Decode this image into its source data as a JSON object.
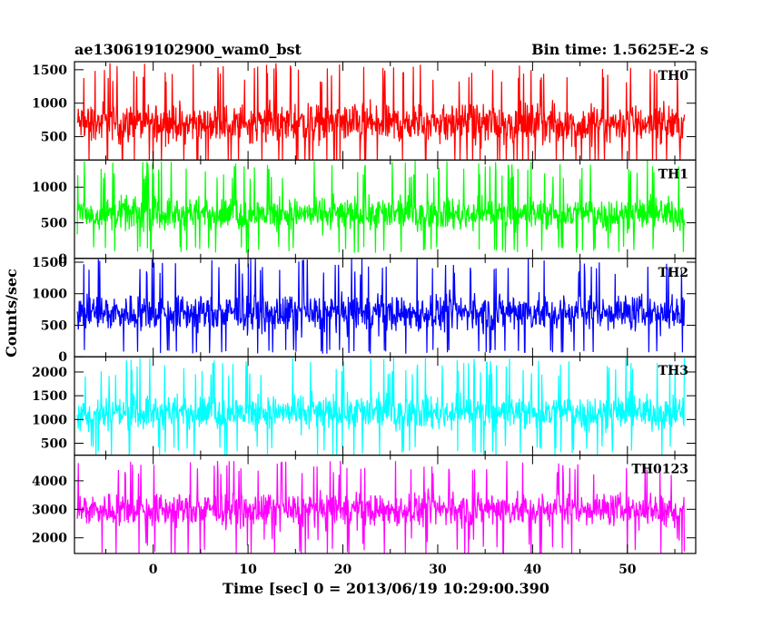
{
  "chart_data": {
    "type": "line",
    "title": "ae130619102900_wam0_bst",
    "subtitle": "Bin time: 1.5625E-2 s",
    "xlabel": "Time [sec] 0 = 2013/06/19 10:29:00.390",
    "ylabel": "Counts/sec",
    "xlim": [
      -8.3,
      57.2
    ],
    "x_ticks": [
      0,
      10,
      20,
      30,
      40,
      50
    ],
    "data_x_range": [
      -8.0,
      56.0
    ],
    "bin_time": 0.015625,
    "panels": [
      {
        "name": "TH0",
        "color": "#ff0000",
        "ylim": [
          150,
          1620
        ],
        "y_ticks": [
          500,
          1000,
          1500
        ],
        "typical_range": [
          100,
          1300
        ],
        "mean": 720,
        "spike_max": 1600
      },
      {
        "name": "TH1",
        "color": "#00ff00",
        "ylim": [
          0,
          1380
        ],
        "y_ticks": [
          0,
          500,
          1000
        ],
        "typical_range": [
          150,
          1100
        ],
        "mean": 600,
        "spike_max": 1380
      },
      {
        "name": "TH2",
        "color": "#0000ff",
        "ylim": [
          0,
          1560
        ],
        "y_ticks": [
          0,
          500,
          1000,
          1500
        ],
        "typical_range": [
          100,
          1300
        ],
        "mean": 700,
        "spike_max": 1560
      },
      {
        "name": "TH3",
        "color": "#00ffff",
        "ylim": [
          250,
          2320
        ],
        "y_ticks": [
          500,
          1000,
          1500,
          2000
        ],
        "typical_range": [
          400,
          1900
        ],
        "mean": 1100,
        "spike_max": 2320
      },
      {
        "name": "TH0123",
        "color": "#ff00ff",
        "ylim": [
          1450,
          4900
        ],
        "y_ticks": [
          2000,
          3000,
          4000
        ],
        "typical_range": [
          1800,
          4200
        ],
        "mean": 3000,
        "spike_max": 4700
      }
    ]
  }
}
